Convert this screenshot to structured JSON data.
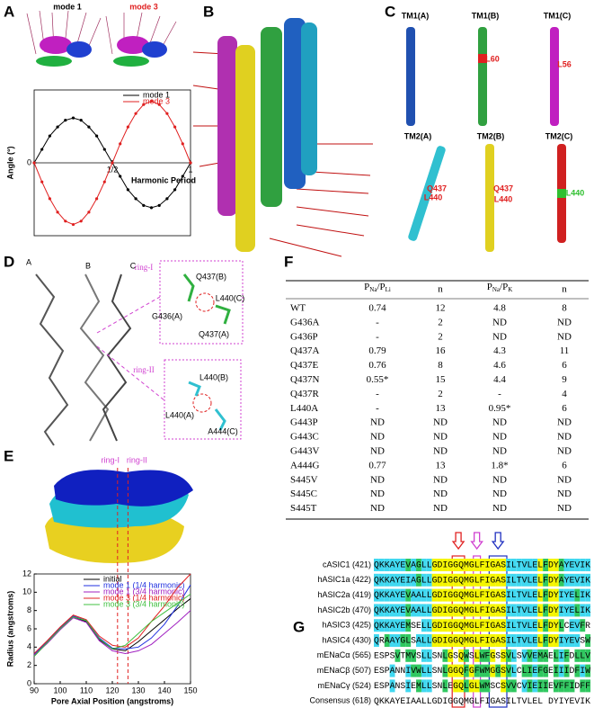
{
  "panel_labels": [
    "A",
    "B",
    "C",
    "D",
    "E",
    "F",
    "G"
  ],
  "chart_data": [
    {
      "type": "line",
      "x_label": "Harmonic Period",
      "y_label": "Angle (°)",
      "x": [
        0,
        0.05,
        0.1,
        0.15,
        0.2,
        0.25,
        0.3,
        0.35,
        0.4,
        0.45,
        0.5,
        0.55,
        0.6,
        0.65,
        0.7,
        0.75,
        0.8,
        0.85,
        0.9,
        0.95,
        1
      ],
      "series": [
        {
          "name": "mode 1",
          "color": "#000000",
          "values": [
            0,
            12,
            24,
            32,
            38,
            40,
            38,
            32,
            24,
            12,
            0,
            -12,
            -24,
            -32,
            -38,
            -40,
            -38,
            -32,
            -24,
            -12,
            0
          ]
        },
        {
          "name": "mode 3",
          "color": "#e02020",
          "values": [
            0,
            -17,
            -32,
            -44,
            -52,
            -55,
            -52,
            -44,
            -32,
            -17,
            0,
            17,
            32,
            44,
            52,
            55,
            52,
            44,
            32,
            17,
            0
          ]
        }
      ],
      "xlim": [
        0,
        1
      ],
      "ylim": [
        -65,
        65
      ],
      "xticks": [
        {
          "value": 0.5,
          "label": "1/2"
        },
        1
      ],
      "yticks": [
        0
      ],
      "zero_line": true,
      "markers": true,
      "legend": "upper right"
    },
    {
      "type": "line",
      "x_label": "Pore Axial Position (angstroms)",
      "y_label": "Radius (angstroms)",
      "x": [
        90,
        95,
        100,
        105,
        110,
        115,
        120,
        125,
        130,
        135,
        140,
        145,
        150
      ],
      "series": [
        {
          "name": "initial",
          "color": "#000000",
          "values": [
            3.0,
            4.5,
            6.0,
            7.3,
            6.8,
            4.8,
            3.8,
            3.6,
            4.6,
            5.8,
            7.0,
            8.2,
            9.3
          ]
        },
        {
          "name": "mode 1 (1/4 harmonic)",
          "color": "#2030e0",
          "values": [
            3.2,
            4.6,
            6.1,
            7.4,
            6.9,
            5.0,
            3.9,
            3.8,
            4.0,
            5.0,
            6.5,
            8.5,
            10.8
          ]
        },
        {
          "name": "mode 1 (3/4 harmonic)",
          "color": "#a020c0",
          "values": [
            3.1,
            4.4,
            5.9,
            7.2,
            6.7,
            4.7,
            3.6,
            3.3,
            3.6,
            4.3,
            5.5,
            6.7,
            8.0
          ]
        },
        {
          "name": "mode 3 (1/4 harmonic)",
          "color": "#e02020",
          "values": [
            3.3,
            4.7,
            6.2,
            7.5,
            7.0,
            5.2,
            4.2,
            4.0,
            5.0,
            6.8,
            8.5,
            10.5,
            12.0
          ]
        },
        {
          "name": "mode 3 (3/4 harmonic)",
          "color": "#40c040",
          "values": [
            3.0,
            4.5,
            6.0,
            7.3,
            6.9,
            4.9,
            3.8,
            4.2,
            5.5,
            6.8,
            7.8,
            8.8,
            9.8
          ]
        }
      ],
      "xlim": [
        90,
        150
      ],
      "ylim": [
        0,
        12
      ],
      "xticks": [
        90,
        100,
        110,
        120,
        130,
        140,
        150
      ],
      "yticks": [
        0,
        2,
        4,
        6,
        8,
        10,
        12
      ],
      "annotations": [
        {
          "text": "ring-I",
          "x": 122
        },
        {
          "text": "ring-II",
          "x": 126
        }
      ],
      "legend": "upper left"
    }
  ],
  "panel_a": {
    "image_labels": [
      "mode 1",
      "mode 3"
    ]
  },
  "panel_c": {
    "labels": [
      "TM1(A)",
      "TM1(B)",
      "TM1(C)",
      "L60",
      "L56",
      "TM2(A)",
      "TM2(B)",
      "TM2(C)",
      "Q437",
      "L440",
      "Q437",
      "L440",
      "L440"
    ]
  },
  "panel_d": {
    "labels": [
      "A",
      "B",
      "C",
      "ring-I",
      "Q437(B)",
      "L440(C)",
      "G436(A)",
      "Q437(A)",
      "ring-II",
      "L440(B)",
      "L440(A)",
      "A444(C)"
    ]
  },
  "table": {
    "header": [
      {
        "parts": [
          "P",
          "Na",
          "/P",
          "Li"
        ]
      },
      "n",
      {
        "parts": [
          "P",
          "Na",
          "/P",
          "K"
        ]
      },
      "n"
    ],
    "rows": [
      [
        "WT",
        "0.74",
        "12",
        "4.8",
        "8"
      ],
      [
        "G436A",
        "-",
        "2",
        "ND",
        "ND"
      ],
      [
        "G436P",
        "-",
        "2",
        "ND",
        "ND"
      ],
      [
        "Q437A",
        "0.79",
        "16",
        "4.3",
        "11"
      ],
      [
        "Q437E",
        "0.76",
        "8",
        "4.6",
        "6"
      ],
      [
        "Q437N",
        "0.55*",
        "15",
        "4.4",
        "9"
      ],
      [
        "Q437R",
        "-",
        "2",
        "-",
        "4"
      ],
      [
        "L440A",
        "-",
        "13",
        "0.95*",
        "6"
      ],
      [
        "G443P",
        "ND",
        "ND",
        "ND",
        "ND"
      ],
      [
        "G443C",
        "ND",
        "ND",
        "ND",
        "ND"
      ],
      [
        "G443V",
        "ND",
        "ND",
        "ND",
        "ND"
      ],
      [
        "A444G",
        "0.77",
        "13",
        "1.8*",
        "6"
      ],
      [
        "S445V",
        "ND",
        "ND",
        "ND",
        "ND"
      ],
      [
        "S445C",
        "ND",
        "ND",
        "ND",
        "ND"
      ],
      [
        "S445T",
        "ND",
        "ND",
        "ND",
        "ND"
      ]
    ]
  },
  "alignment": {
    "rows": [
      {
        "name": "cASIC1 (421)",
        "sequence": "QKKAYEVAGLLGDIGGQMGLFIGASILTVLELFDYAYEVIK"
      },
      {
        "name": "hASIC1a (422)",
        "sequence": "QKKAYEIAGLLGDIGGQMGLFIGASILTVLELFDYAYEVIK"
      },
      {
        "name": "hASIC2a (419)",
        "sequence": "QKKAYEVAALLGDIGGQMGLFIGASILTVLELFDYIYELIK"
      },
      {
        "name": "hASIC2b (470)",
        "sequence": "QKKAYEVAALLGDIGGQMGLFIGASILTVLELFDYIYELIK"
      },
      {
        "name": "hASIC3 (425)",
        "sequence": "QKKAYEMSELLGDIGGQMGLFIGASILTVLELFDYLCEVFR"
      },
      {
        "name": "hASIC4 (430)",
        "sequence": "QRAAYGLSALLGDIGGQMGLFIGASILTVLELFDYIYEVSW"
      },
      {
        "name": "mENaCα (565)",
        "sequence": "ESPSVTMVSLLSNLGSQWSLWFGSSVLSVVEMAELIFDLLV"
      },
      {
        "name": "mENaCβ (507)",
        "sequence": "ESPANNIVWLLSNLGGQFGFWMGGSVLCLIEFGEIIIDFIW"
      },
      {
        "name": "mENaCγ (524)",
        "sequence": "ESPANSIEMLLSNLEGQLGLWMSCSVVCVIEIIEVFFIDFF"
      },
      {
        "name": "Consensus (618)",
        "sequence": "QKKAYEIAALLGDIGGQMGLFIGASILTVLEL DYIYEVIK"
      }
    ]
  }
}
